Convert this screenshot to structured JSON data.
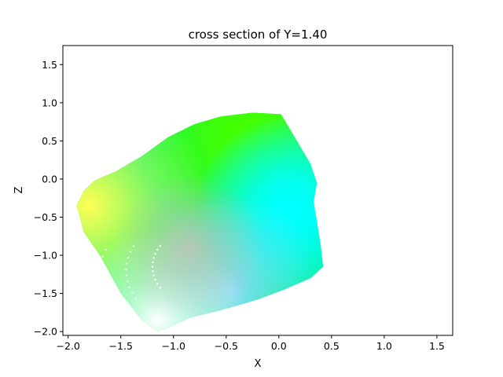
{
  "chart_data": {
    "type": "scatter",
    "title": "cross section of Y=1.40",
    "xlabel": "X",
    "ylabel": "Z",
    "xlim": [
      -2.05,
      1.65
    ],
    "ylim": [
      -2.05,
      1.75
    ],
    "x_ticks": [
      -2.0,
      -1.5,
      -1.0,
      -0.5,
      0.0,
      0.5,
      1.0,
      1.5
    ],
    "x_tick_labels": [
      "−2.0",
      "−1.5",
      "−1.0",
      "−0.5",
      "0.0",
      "0.5",
      "1.0",
      "1.5"
    ],
    "y_ticks": [
      -2.0,
      -1.5,
      -1.0,
      -0.5,
      0.0,
      0.5,
      1.0,
      1.5
    ],
    "y_tick_labels": [
      "−2.0",
      "−1.5",
      "−1.0",
      "−0.5",
      "0.0",
      "0.5",
      "1.0",
      "1.5"
    ],
    "grid": false,
    "legend": "none",
    "region": {
      "boundary": [
        [
          -1.92,
          -0.35
        ],
        [
          -1.85,
          -0.15
        ],
        [
          -1.75,
          -0.02
        ],
        [
          -1.55,
          0.1
        ],
        [
          -1.3,
          0.3
        ],
        [
          -1.05,
          0.55
        ],
        [
          -0.8,
          0.72
        ],
        [
          -0.55,
          0.82
        ],
        [
          -0.25,
          0.87
        ],
        [
          0.02,
          0.85
        ],
        [
          0.15,
          0.55
        ],
        [
          0.3,
          0.2
        ],
        [
          0.36,
          -0.05
        ],
        [
          0.33,
          -0.3
        ],
        [
          0.36,
          -0.55
        ],
        [
          0.4,
          -0.9
        ],
        [
          0.42,
          -1.15
        ],
        [
          0.3,
          -1.3
        ],
        [
          0.05,
          -1.45
        ],
        [
          -0.2,
          -1.58
        ],
        [
          -0.55,
          -1.72
        ],
        [
          -0.85,
          -1.82
        ],
        [
          -1.05,
          -1.95
        ],
        [
          -1.15,
          -2.0
        ],
        [
          -1.3,
          -1.85
        ],
        [
          -1.5,
          -1.5
        ],
        [
          -1.7,
          -1.0
        ],
        [
          -1.85,
          -0.7
        ]
      ],
      "colors": {
        "yellow": "#ffff55",
        "green": "#44ff00",
        "spring": "#00f070",
        "cyan": "#00ffff",
        "lightblue": "#88ddff",
        "white": "#ffffff",
        "grey": "#c0c4b8"
      }
    }
  }
}
